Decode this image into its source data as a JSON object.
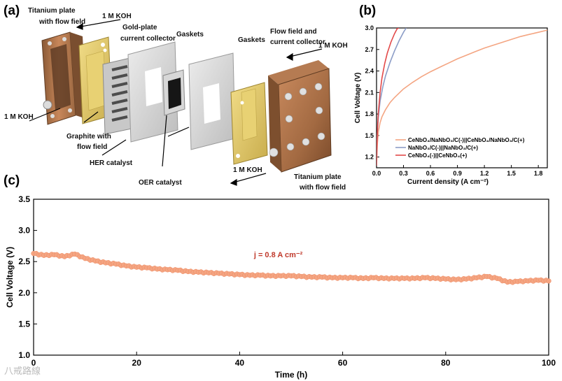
{
  "panels": {
    "a": "(a)",
    "b": "(b)",
    "c": "(c)"
  },
  "diagram": {
    "labels": {
      "titanium_plate_left": "Titanium plate",
      "with_flow_field_left": "with flow field",
      "koh_top_left": "1 M KOH",
      "gold_plate": "Gold-plate",
      "current_collector_left": "current collector",
      "gaskets_1": "Gaskets",
      "gaskets_2": "Gaskets",
      "flow_field_and": "Flow field and",
      "current_collector_right": "current collector",
      "koh_top_right": "1 M KOH",
      "koh_left": "1 M KOH",
      "graphite": "Graphite with",
      "flow_field": "flow field",
      "her_catalyst": "HER catalyst",
      "oer_catalyst": "OER catalyst",
      "koh_bottom": "1 M KOH",
      "titanium_plate_right": "Titanium plate",
      "with_flow_field_right": "with flow field"
    }
  },
  "watermark": "八戒路線",
  "colors": {
    "orange": "#f4a582",
    "orange_dark": "#ef8a62",
    "blue": "#8c9dc7",
    "red": "#e34a4a",
    "dark_red": "#c0392b"
  },
  "chart_data": [
    {
      "id": "b",
      "type": "line",
      "title": "",
      "xlabel": "Current density (A cm⁻²)",
      "ylabel": "Cell Voltage (V)",
      "xlim": [
        0,
        1.9
      ],
      "ylim": [
        1.05,
        3.0
      ],
      "xticks": [
        "0.0",
        "0.3",
        "0.6",
        "0.9",
        "1.2",
        "1.5",
        "1.8"
      ],
      "yticks": [
        "1.2",
        "1.5",
        "1.8",
        "2.1",
        "2.4",
        "2.7",
        "3.0"
      ],
      "legend": [
        "CeNbO₄/NaNbO₃/C(-)||CeNbO₄/NaNbO₃/C(+)",
        "NaNbO₃/C(-)||NaNbO₃/C(+)",
        "CeNbO₄(-)||CeNbO₄(+)"
      ],
      "series": [
        {
          "name": "CeNbO4/NaNbO3/C(-)||CeNbO4/NaNbO3/C(+)",
          "color": "#f4a582",
          "x": [
            0.0,
            0.005,
            0.01,
            0.02,
            0.04,
            0.06,
            0.1,
            0.15,
            0.2,
            0.3,
            0.4,
            0.5,
            0.6,
            0.7,
            0.8,
            0.9,
            1.0,
            1.1,
            1.2,
            1.3,
            1.4,
            1.5,
            1.6,
            1.7,
            1.8,
            1.9
          ],
          "y": [
            1.08,
            1.25,
            1.4,
            1.55,
            1.68,
            1.76,
            1.86,
            1.96,
            2.03,
            2.15,
            2.24,
            2.32,
            2.39,
            2.45,
            2.51,
            2.57,
            2.62,
            2.67,
            2.72,
            2.76,
            2.8,
            2.84,
            2.88,
            2.91,
            2.94,
            2.97
          ]
        },
        {
          "name": "NaNbO3/C(-)||NaNbO3/C(+)",
          "color": "#8c9dc7",
          "x": [
            0.0,
            0.005,
            0.01,
            0.02,
            0.04,
            0.07,
            0.1,
            0.15,
            0.2,
            0.25,
            0.3,
            0.33
          ],
          "y": [
            1.08,
            1.35,
            1.55,
            1.75,
            1.98,
            2.18,
            2.33,
            2.52,
            2.68,
            2.82,
            2.94,
            3.0
          ]
        },
        {
          "name": "CeNbO4(-)||CeNbO4(+)",
          "color": "#e34a4a",
          "x": [
            0.0,
            0.005,
            0.01,
            0.02,
            0.04,
            0.06,
            0.09,
            0.12,
            0.16,
            0.2,
            0.23,
            0.25
          ],
          "y": [
            1.08,
            1.35,
            1.58,
            1.82,
            2.1,
            2.3,
            2.5,
            2.65,
            2.8,
            2.92,
            2.99,
            3.0
          ]
        }
      ]
    },
    {
      "id": "c",
      "type": "scatter",
      "title": "",
      "xlabel": "Time (h)",
      "ylabel": "Cell Voltage (V)",
      "xlim": [
        0,
        100
      ],
      "ylim": [
        1.0,
        3.5
      ],
      "xticks": [
        "0",
        "20",
        "40",
        "60",
        "80",
        "100"
      ],
      "yticks": [
        "1.0",
        "1.5",
        "2.0",
        "2.5",
        "3.0",
        "3.5"
      ],
      "annotation": "j = 0.8 A cm⁻²",
      "series": [
        {
          "name": "Cell voltage",
          "color": "#f4a582",
          "x": [
            0,
            2,
            4,
            6,
            8,
            10,
            12,
            14,
            16,
            18,
            20,
            22,
            24,
            26,
            28,
            30,
            32,
            34,
            36,
            38,
            40,
            42,
            44,
            46,
            48,
            50,
            52,
            54,
            56,
            58,
            60,
            62,
            64,
            66,
            68,
            70,
            72,
            74,
            76,
            78,
            80,
            82,
            84,
            86,
            88,
            90,
            92,
            94,
            96,
            98,
            100
          ],
          "y": [
            2.63,
            2.6,
            2.61,
            2.58,
            2.62,
            2.55,
            2.51,
            2.48,
            2.46,
            2.43,
            2.41,
            2.4,
            2.38,
            2.37,
            2.36,
            2.34,
            2.33,
            2.32,
            2.31,
            2.3,
            2.29,
            2.28,
            2.28,
            2.27,
            2.27,
            2.27,
            2.26,
            2.25,
            2.25,
            2.24,
            2.24,
            2.24,
            2.23,
            2.24,
            2.23,
            2.23,
            2.23,
            2.23,
            2.24,
            2.23,
            2.22,
            2.21,
            2.22,
            2.24,
            2.26,
            2.23,
            2.17,
            2.18,
            2.19,
            2.2,
            2.19
          ]
        }
      ]
    }
  ]
}
